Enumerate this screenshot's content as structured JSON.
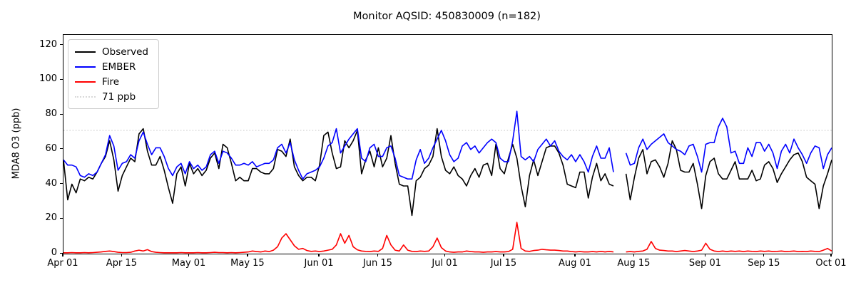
{
  "title": "Monitor AQSID: 450830009 (n=182)",
  "axes": {
    "ylabel": "MDA8 O3 (ppb)",
    "yticks": [
      0,
      20,
      40,
      60,
      80,
      100,
      120
    ],
    "ylim": [
      0,
      126
    ],
    "xticks": [
      {
        "day": 0,
        "label": "Apr 01"
      },
      {
        "day": 14,
        "label": "Apr 15"
      },
      {
        "day": 30,
        "label": "May 01"
      },
      {
        "day": 44,
        "label": "May 15"
      },
      {
        "day": 61,
        "label": "Jun 01"
      },
      {
        "day": 75,
        "label": "Jun 15"
      },
      {
        "day": 91,
        "label": "Jul 01"
      },
      {
        "day": 105,
        "label": "Jul 15"
      },
      {
        "day": 122,
        "label": "Aug 01"
      },
      {
        "day": 136,
        "label": "Aug 15"
      },
      {
        "day": 153,
        "label": "Sep 01"
      },
      {
        "day": 167,
        "label": "Sep 15"
      },
      {
        "day": 183,
        "label": "Oct 01"
      }
    ]
  },
  "legend": {
    "items": [
      {
        "label": "Observed",
        "color": "#000000",
        "style": "solid"
      },
      {
        "label": "EMBER",
        "color": "#0000ff",
        "style": "solid"
      },
      {
        "label": "Fire",
        "color": "#ff0000",
        "style": "solid"
      },
      {
        "label": "71 ppb",
        "color": "#d9d9d9",
        "style": "dotted"
      }
    ]
  },
  "chart_data": {
    "type": "line",
    "title": "Monitor AQSID: 450830009 (n=182)",
    "xlabel": "",
    "ylabel": "MDA8 O3 (ppb)",
    "x_unit": "days since Apr 01 (daily values, Apr 01 through Oct 01)",
    "x_range_days": 183,
    "n_points": 182,
    "gap_note": "no data on days 132-133 (Aug 11-12), visible as line break",
    "threshold": {
      "value": 71,
      "label": "71 ppb",
      "color": "#d9d9d9"
    },
    "grid": false,
    "legend_position": "upper left",
    "series": [
      {
        "name": "Observed",
        "color": "#000000",
        "values": [
          54,
          31,
          40,
          35,
          43,
          42,
          44,
          43,
          47,
          52,
          56,
          65,
          54,
          36,
          45,
          50,
          55,
          53,
          69,
          72,
          59,
          51,
          51,
          56,
          48,
          38,
          29,
          46,
          50,
          39,
          52,
          46,
          49,
          45,
          48,
          55,
          58,
          49,
          63,
          61,
          52,
          42,
          44,
          42,
          42,
          49,
          49,
          47,
          46,
          46,
          49,
          60,
          59,
          56,
          66,
          50,
          45,
          42,
          44,
          44,
          42,
          51,
          68,
          70,
          58,
          49,
          50,
          65,
          61,
          65,
          71,
          46,
          54,
          59,
          50,
          61,
          50,
          55,
          68,
          52,
          40,
          39,
          39,
          22,
          42,
          44,
          49,
          51,
          56,
          72,
          56,
          48,
          46,
          50,
          45,
          43,
          39,
          45,
          49,
          44,
          51,
          52,
          45,
          63,
          49,
          46,
          55,
          63,
          55,
          39,
          27,
          45,
          54,
          45,
          53,
          61,
          62,
          62,
          58,
          51,
          40,
          39,
          38,
          47,
          47,
          32,
          44,
          52,
          42,
          46,
          40,
          39,
          null,
          null,
          46,
          31,
          44,
          55,
          60,
          46,
          53,
          54,
          50,
          44,
          52,
          65,
          60,
          48,
          47,
          47,
          52,
          40,
          26,
          45,
          53,
          55,
          46,
          43,
          43,
          48,
          53,
          43,
          43,
          43,
          48,
          42,
          43,
          51,
          53,
          49,
          41,
          46,
          50,
          54,
          57,
          58,
          53,
          44,
          42,
          40,
          26,
          39,
          46,
          54
        ]
      },
      {
        "name": "EMBER",
        "color": "#0000ff",
        "values": [
          54,
          51,
          51,
          50,
          45,
          44,
          46,
          45,
          47,
          52,
          57,
          68,
          62,
          48,
          52,
          53,
          57,
          55,
          65,
          70,
          63,
          57,
          61,
          61,
          56,
          49,
          45,
          50,
          52,
          46,
          53,
          49,
          51,
          48,
          50,
          57,
          59,
          52,
          59,
          58,
          55,
          51,
          51,
          52,
          51,
          53,
          50,
          51,
          52,
          52,
          54,
          61,
          63,
          58,
          64,
          54,
          48,
          43,
          46,
          47,
          48,
          50,
          55,
          62,
          64,
          72,
          58,
          62,
          66,
          69,
          72,
          55,
          53,
          61,
          63,
          56,
          56,
          61,
          62,
          55,
          45,
          44,
          43,
          43,
          54,
          60,
          52,
          55,
          61,
          66,
          71,
          65,
          57,
          53,
          55,
          62,
          64,
          60,
          62,
          58,
          61,
          64,
          66,
          64,
          55,
          53,
          53,
          65,
          82,
          56,
          54,
          56,
          53,
          60,
          63,
          66,
          62,
          65,
          59,
          56,
          54,
          57,
          53,
          57,
          53,
          47,
          56,
          62,
          55,
          55,
          61,
          47,
          null,
          null,
          58,
          51,
          52,
          61,
          66,
          60,
          63,
          65,
          67,
          69,
          64,
          62,
          60,
          59,
          57,
          62,
          63,
          56,
          47,
          63,
          64,
          64,
          73,
          78,
          73,
          58,
          59,
          52,
          52,
          61,
          56,
          64,
          64,
          59,
          63,
          58,
          49,
          59,
          63,
          58,
          66,
          61,
          57,
          52,
          58,
          62,
          61,
          49,
          57,
          61
        ]
      },
      {
        "name": "Fire",
        "color": "#ff0000",
        "values": [
          0.5,
          0.5,
          0.6,
          0.5,
          0.5,
          0.6,
          0.5,
          0.6,
          0.8,
          1.0,
          1.3,
          1.5,
          1.2,
          0.8,
          0.6,
          0.6,
          0.8,
          1.5,
          2.0,
          1.5,
          2.3,
          1.2,
          0.8,
          0.6,
          0.5,
          0.5,
          0.5,
          0.5,
          0.6,
          0.5,
          0.5,
          0.5,
          0.6,
          0.5,
          0.5,
          0.6,
          0.8,
          0.6,
          0.6,
          0.5,
          0.6,
          0.5,
          0.6,
          0.8,
          1.0,
          1.5,
          1.2,
          1.0,
          1.5,
          1.2,
          2.0,
          4.0,
          9.0,
          11.5,
          8.0,
          4.5,
          2.5,
          3.0,
          1.8,
          1.3,
          1.5,
          1.2,
          1.5,
          2.0,
          2.5,
          5.0,
          11.5,
          6.0,
          10.5,
          4.0,
          2.2,
          1.5,
          1.3,
          1.2,
          1.5,
          1.3,
          3.0,
          10.5,
          5.0,
          2.0,
          1.5,
          5.0,
          2.0,
          1.3,
          1.2,
          1.5,
          1.3,
          1.5,
          4.0,
          9.0,
          3.5,
          1.5,
          1.0,
          0.8,
          1.0,
          1.0,
          1.5,
          1.2,
          1.0,
          1.0,
          0.8,
          1.0,
          1.0,
          1.2,
          1.0,
          1.0,
          1.2,
          2.5,
          18.0,
          3.0,
          1.5,
          1.3,
          1.8,
          2.0,
          2.5,
          2.2,
          2.0,
          2.0,
          1.8,
          1.5,
          1.5,
          1.2,
          1.0,
          1.2,
          1.0,
          1.0,
          1.2,
          1.0,
          1.3,
          1.0,
          1.3,
          1.0,
          null,
          null,
          1.0,
          1.2,
          1.0,
          1.3,
          1.5,
          2.5,
          7.0,
          3.0,
          2.0,
          1.8,
          1.5,
          1.5,
          1.2,
          1.5,
          1.8,
          1.5,
          1.2,
          1.5,
          2.0,
          6.0,
          2.5,
          1.5,
          1.2,
          1.5,
          1.2,
          1.5,
          1.3,
          1.5,
          1.2,
          1.5,
          1.3,
          1.2,
          1.5,
          1.3,
          1.5,
          1.2,
          1.3,
          1.5,
          1.2,
          1.3,
          1.5,
          1.2,
          1.3,
          1.2,
          1.5,
          1.3,
          1.2,
          2.0,
          3.0,
          1.5
        ]
      }
    ]
  }
}
